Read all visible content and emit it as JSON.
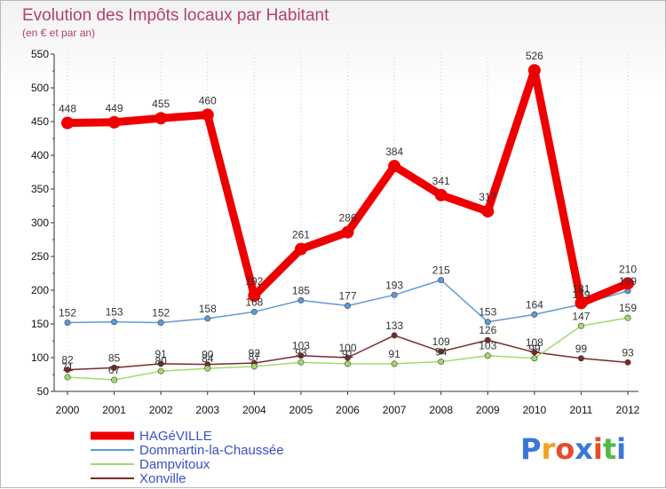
{
  "chart_data": {
    "type": "line",
    "title": "Evolution des Impôts locaux par Habitant",
    "subtitle": "(en € et par an)",
    "xlabel": "",
    "ylabel": "",
    "ylim": [
      50,
      550
    ],
    "yticks": [
      50,
      100,
      150,
      200,
      250,
      300,
      350,
      400,
      450,
      500,
      550
    ],
    "grid": "vertical",
    "legend_position": "bottom-left",
    "categories": [
      "2000",
      "2001",
      "2002",
      "2003",
      "2004",
      "2005",
      "2006",
      "2007",
      "2008",
      "2009",
      "2010",
      "2011",
      "2012"
    ],
    "series": [
      {
        "name": "HAGéVILLE",
        "color": "#ee0000",
        "values": [
          448,
          449,
          455,
          460,
          192,
          261,
          286,
          384,
          341,
          317,
          526,
          181,
          210
        ],
        "labels": [
          "448",
          "449",
          "455",
          "460",
          "192",
          "261",
          "286",
          "384",
          "341",
          "317",
          "526",
          "181",
          "210"
        ]
      },
      {
        "name": "Dommartin-la-Chaussée",
        "color": "#5e9ad6",
        "values": [
          152,
          153,
          152,
          158,
          168,
          185,
          177,
          193,
          215,
          153,
          164,
          179,
          199
        ],
        "labels": [
          "152",
          "153",
          "152",
          "158",
          "168",
          "185",
          "177",
          "193",
          "215",
          "153",
          "164",
          "179",
          "199"
        ]
      },
      {
        "name": "Dampvitoux",
        "color": "#9edc68",
        "values": [
          71,
          67,
          80,
          84,
          87,
          93,
          91,
          91,
          94,
          103,
          99,
          147,
          159
        ],
        "labels": [
          "71",
          "67",
          "80",
          "84",
          "87",
          "93",
          "91",
          "91",
          "94",
          "103",
          "99",
          "147",
          "159"
        ]
      },
      {
        "name": "Xonville",
        "color": "#7a2a2a",
        "values": [
          82,
          85,
          91,
          90,
          92,
          103,
          100,
          133,
          109,
          126,
          108,
          99,
          93
        ],
        "labels": [
          "82",
          "85",
          "91",
          "90",
          "92",
          "103",
          "100",
          "133",
          "109",
          "126",
          "108",
          "99",
          "93"
        ]
      }
    ]
  },
  "logo": {
    "text": "Proxiti",
    "colors": [
      "#3a78d8",
      "#f0a020",
      "#e84a2a",
      "#3a78d8",
      "#e84a2a",
      "#50b848",
      "#3a78d8"
    ]
  }
}
